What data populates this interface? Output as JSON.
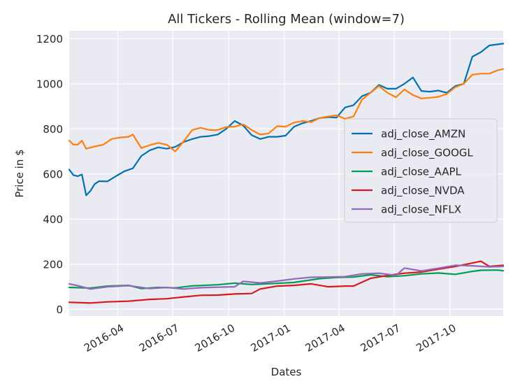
{
  "chart_data": {
    "type": "line",
    "title": "All Tickers - Rolling Mean (window=7)",
    "xlabel": "Dates",
    "ylabel": "Price in $",
    "xlim": [
      "2016-01-12",
      "2017-12-28"
    ],
    "ylim": [
      -30,
      1235
    ],
    "x_ticks": [
      "2016-04-01",
      "2016-07-01",
      "2016-10-01",
      "2017-01-01",
      "2017-04-01",
      "2017-07-01",
      "2017-10-01"
    ],
    "x_tick_labels": [
      "2016-04",
      "2016-07",
      "2016-10",
      "2017-01",
      "2017-04",
      "2017-07",
      "2017-10"
    ],
    "y_ticks": [
      0,
      200,
      400,
      600,
      800,
      1000,
      1200
    ],
    "y_tick_labels": [
      "0",
      "200",
      "400",
      "600",
      "800",
      "1000",
      "1200"
    ],
    "grid": true,
    "legend_position": "center-right",
    "background": "#eaeaf2",
    "series": [
      {
        "name": "adj_close_AMZN",
        "color": "#0072b2",
        "points": [
          [
            "2016-01-12",
            620
          ],
          [
            "2016-01-19",
            595
          ],
          [
            "2016-01-26",
            590
          ],
          [
            "2016-02-02",
            598
          ],
          [
            "2016-02-09",
            505
          ],
          [
            "2016-02-16",
            525
          ],
          [
            "2016-02-23",
            555
          ],
          [
            "2016-03-01",
            568
          ],
          [
            "2016-03-15",
            567
          ],
          [
            "2016-03-29",
            590
          ],
          [
            "2016-04-12",
            612
          ],
          [
            "2016-04-26",
            625
          ],
          [
            "2016-05-10",
            680
          ],
          [
            "2016-05-24",
            705
          ],
          [
            "2016-06-07",
            718
          ],
          [
            "2016-06-21",
            712
          ],
          [
            "2016-07-05",
            720
          ],
          [
            "2016-07-19",
            742
          ],
          [
            "2016-08-02",
            755
          ],
          [
            "2016-08-16",
            765
          ],
          [
            "2016-08-30",
            768
          ],
          [
            "2016-09-13",
            775
          ],
          [
            "2016-09-27",
            800
          ],
          [
            "2016-10-11",
            835
          ],
          [
            "2016-10-25",
            815
          ],
          [
            "2016-11-08",
            772
          ],
          [
            "2016-11-22",
            755
          ],
          [
            "2016-12-06",
            765
          ],
          [
            "2016-12-20",
            765
          ],
          [
            "2017-01-03",
            770
          ],
          [
            "2017-01-17",
            810
          ],
          [
            "2017-01-31",
            825
          ],
          [
            "2017-02-14",
            835
          ],
          [
            "2017-02-28",
            848
          ],
          [
            "2017-03-14",
            852
          ],
          [
            "2017-03-28",
            850
          ],
          [
            "2017-04-11",
            895
          ],
          [
            "2017-04-25",
            905
          ],
          [
            "2017-05-09",
            945
          ],
          [
            "2017-05-23",
            960
          ],
          [
            "2017-06-06",
            995
          ],
          [
            "2017-06-20",
            978
          ],
          [
            "2017-07-04",
            978
          ],
          [
            "2017-07-18",
            1000
          ],
          [
            "2017-08-01",
            1028
          ],
          [
            "2017-08-15",
            968
          ],
          [
            "2017-08-29",
            965
          ],
          [
            "2017-09-12",
            970
          ],
          [
            "2017-09-26",
            960
          ],
          [
            "2017-10-10",
            990
          ],
          [
            "2017-10-24",
            1000
          ],
          [
            "2017-11-07",
            1120
          ],
          [
            "2017-11-21",
            1140
          ],
          [
            "2017-12-05",
            1170
          ],
          [
            "2017-12-19",
            1175
          ],
          [
            "2017-12-28",
            1178
          ]
        ]
      },
      {
        "name": "adj_close_GOOGL",
        "color": "#ff7f0e",
        "points": [
          [
            "2016-01-12",
            748
          ],
          [
            "2016-01-19",
            730
          ],
          [
            "2016-01-26",
            730
          ],
          [
            "2016-02-02",
            748
          ],
          [
            "2016-02-09",
            712
          ],
          [
            "2016-02-23",
            722
          ],
          [
            "2016-03-08",
            730
          ],
          [
            "2016-03-22",
            755
          ],
          [
            "2016-04-05",
            762
          ],
          [
            "2016-04-19",
            765
          ],
          [
            "2016-04-26",
            775
          ],
          [
            "2016-05-10",
            715
          ],
          [
            "2016-05-24",
            728
          ],
          [
            "2016-06-07",
            738
          ],
          [
            "2016-06-21",
            730
          ],
          [
            "2016-07-05",
            700
          ],
          [
            "2016-07-19",
            745
          ],
          [
            "2016-08-02",
            795
          ],
          [
            "2016-08-16",
            805
          ],
          [
            "2016-08-30",
            795
          ],
          [
            "2016-09-13",
            795
          ],
          [
            "2016-09-27",
            808
          ],
          [
            "2016-10-11",
            810
          ],
          [
            "2016-10-25",
            820
          ],
          [
            "2016-11-08",
            795
          ],
          [
            "2016-11-22",
            775
          ],
          [
            "2016-12-06",
            780
          ],
          [
            "2016-12-20",
            812
          ],
          [
            "2017-01-03",
            810
          ],
          [
            "2017-01-17",
            828
          ],
          [
            "2017-01-31",
            835
          ],
          [
            "2017-02-14",
            830
          ],
          [
            "2017-02-28",
            848
          ],
          [
            "2017-03-14",
            855
          ],
          [
            "2017-03-28",
            860
          ],
          [
            "2017-04-11",
            845
          ],
          [
            "2017-04-25",
            855
          ],
          [
            "2017-05-09",
            930
          ],
          [
            "2017-05-23",
            960
          ],
          [
            "2017-06-06",
            990
          ],
          [
            "2017-06-20",
            960
          ],
          [
            "2017-07-04",
            940
          ],
          [
            "2017-07-18",
            975
          ],
          [
            "2017-08-01",
            950
          ],
          [
            "2017-08-15",
            935
          ],
          [
            "2017-08-29",
            938
          ],
          [
            "2017-09-12",
            942
          ],
          [
            "2017-09-26",
            955
          ],
          [
            "2017-10-10",
            985
          ],
          [
            "2017-10-24",
            1000
          ],
          [
            "2017-11-07",
            1040
          ],
          [
            "2017-11-21",
            1045
          ],
          [
            "2017-12-05",
            1045
          ],
          [
            "2017-12-19",
            1060
          ],
          [
            "2017-12-28",
            1065
          ]
        ]
      },
      {
        "name": "adj_close_AAPL",
        "color": "#009e4f",
        "points": [
          [
            "2016-01-12",
            97
          ],
          [
            "2016-02-16",
            94
          ],
          [
            "2016-03-15",
            103
          ],
          [
            "2016-04-19",
            106
          ],
          [
            "2016-05-10",
            92
          ],
          [
            "2016-06-07",
            97
          ],
          [
            "2016-07-05",
            95
          ],
          [
            "2016-08-02",
            104
          ],
          [
            "2016-09-13",
            109
          ],
          [
            "2016-10-11",
            116
          ],
          [
            "2016-11-08",
            110
          ],
          [
            "2016-12-20",
            115
          ],
          [
            "2017-01-17",
            119
          ],
          [
            "2017-02-28",
            136
          ],
          [
            "2017-03-28",
            141
          ],
          [
            "2017-04-25",
            143
          ],
          [
            "2017-05-23",
            153
          ],
          [
            "2017-06-20",
            145
          ],
          [
            "2017-07-18",
            149
          ],
          [
            "2017-08-15",
            157
          ],
          [
            "2017-09-12",
            161
          ],
          [
            "2017-10-10",
            155
          ],
          [
            "2017-11-07",
            168
          ],
          [
            "2017-11-21",
            173
          ],
          [
            "2017-12-19",
            174
          ],
          [
            "2017-12-28",
            171
          ]
        ]
      },
      {
        "name": "adj_close_NVDA",
        "color": "#d7191c",
        "points": [
          [
            "2016-01-12",
            31
          ],
          [
            "2016-02-16",
            28
          ],
          [
            "2016-03-15",
            33
          ],
          [
            "2016-04-19",
            36
          ],
          [
            "2016-05-24",
            44
          ],
          [
            "2016-06-21",
            47
          ],
          [
            "2016-07-19",
            55
          ],
          [
            "2016-08-16",
            62
          ],
          [
            "2016-09-13",
            63
          ],
          [
            "2016-10-11",
            68
          ],
          [
            "2016-11-08",
            70
          ],
          [
            "2016-11-22",
            90
          ],
          [
            "2016-12-20",
            103
          ],
          [
            "2017-01-17",
            106
          ],
          [
            "2017-02-14",
            113
          ],
          [
            "2017-03-14",
            100
          ],
          [
            "2017-04-11",
            103
          ],
          [
            "2017-04-25",
            103
          ],
          [
            "2017-05-23",
            137
          ],
          [
            "2017-06-20",
            150
          ],
          [
            "2017-07-18",
            160
          ],
          [
            "2017-08-15",
            165
          ],
          [
            "2017-09-12",
            178
          ],
          [
            "2017-10-10",
            190
          ],
          [
            "2017-11-07",
            205
          ],
          [
            "2017-11-21",
            213
          ],
          [
            "2017-12-05",
            190
          ],
          [
            "2017-12-28",
            195
          ]
        ]
      },
      {
        "name": "adj_close_NFLX",
        "color": "#9467bd",
        "points": [
          [
            "2016-01-12",
            113
          ],
          [
            "2016-01-26",
            105
          ],
          [
            "2016-02-16",
            90
          ],
          [
            "2016-03-15",
            100
          ],
          [
            "2016-04-19",
            105
          ],
          [
            "2016-05-24",
            92
          ],
          [
            "2016-06-21",
            97
          ],
          [
            "2016-07-19",
            90
          ],
          [
            "2016-08-16",
            96
          ],
          [
            "2016-09-13",
            98
          ],
          [
            "2016-10-11",
            100
          ],
          [
            "2016-10-25",
            124
          ],
          [
            "2016-11-22",
            117
          ],
          [
            "2016-12-20",
            125
          ],
          [
            "2017-01-17",
            135
          ],
          [
            "2017-02-14",
            142
          ],
          [
            "2017-03-14",
            143
          ],
          [
            "2017-04-11",
            145
          ],
          [
            "2017-05-09",
            157
          ],
          [
            "2017-06-06",
            160
          ],
          [
            "2017-07-04",
            150
          ],
          [
            "2017-07-18",
            183
          ],
          [
            "2017-08-15",
            170
          ],
          [
            "2017-09-12",
            182
          ],
          [
            "2017-10-10",
            195
          ],
          [
            "2017-11-07",
            193
          ],
          [
            "2017-12-05",
            188
          ],
          [
            "2017-12-28",
            190
          ]
        ]
      }
    ]
  }
}
